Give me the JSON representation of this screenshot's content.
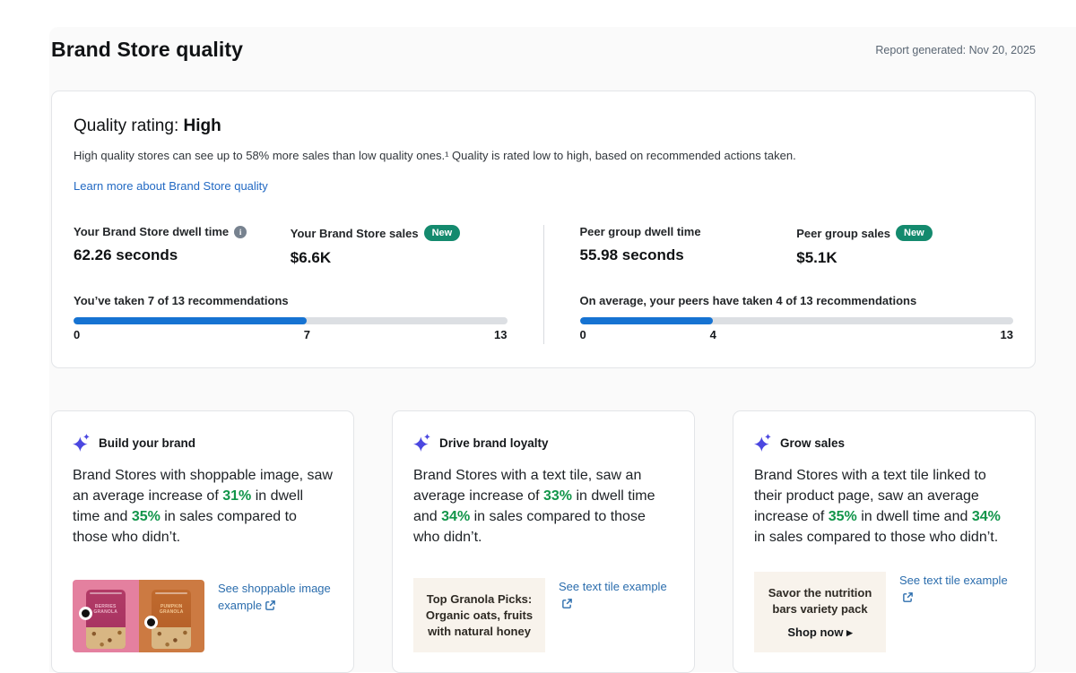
{
  "page": {
    "title": "Brand Store quality",
    "report_generated": "Report generated: Nov 20, 2025"
  },
  "quality_card": {
    "rating_label": "Quality rating:",
    "rating_value": "High",
    "description": "High quality stores can see up to 58% more sales than low quality ones.¹ Quality is rated low to high, based on recommended actions taken.",
    "learn_more": "Learn more about Brand Store quality",
    "metrics": [
      {
        "label": "Your Brand Store dwell time",
        "value": "62.26 seconds"
      },
      {
        "label": "Your Brand Store sales",
        "value": "$6.6K",
        "badge": "New"
      },
      {
        "label": "Peer group dwell time",
        "value": "55.98 seconds"
      },
      {
        "label": "Peer group sales",
        "value": "$5.1K",
        "badge": "New"
      }
    ],
    "progress": [
      {
        "label": "You’ve taken 7 of 13 recommendations",
        "min": "0",
        "current": "7",
        "max": "13",
        "fraction": 0.5385
      },
      {
        "label": "On average, your peers have taken 4 of 13 recommendations",
        "min": "0",
        "current": "4",
        "max": "13",
        "fraction": 0.3077
      }
    ]
  },
  "cards": [
    {
      "title": "Build your brand",
      "body": {
        "s1": "Brand Stores with shoppable image, saw an average increase of ",
        "p1": "31%",
        "s2": " in dwell time and ",
        "p2": "35%",
        "s3": " in sales compared to those who didn’t."
      },
      "link": "See shoppable image example",
      "image": {
        "left_label": "BERRIES GRANOLA",
        "right_label": "PUMPKIN GRANOLA"
      }
    },
    {
      "title": "Drive brand loyalty",
      "body": {
        "s1": "Brand Stores with a text tile, saw an average increase of ",
        "p1": "33%",
        "s2": " in dwell time and ",
        "p2": "34%",
        "s3": " in sales compared to those who didn’t."
      },
      "link": "See text tile example",
      "tile": {
        "text": "Top Granola Picks: Organic oats, fruits with natural honey"
      }
    },
    {
      "title": "Grow sales",
      "body": {
        "s1": "Brand Stores with a text tile linked to their product page, saw an average increase of ",
        "p1": "35%",
        "s2": " in dwell time and ",
        "p2": "34%",
        "s3": " in sales compared to those who didn’t."
      },
      "link": "See text tile example",
      "tile": {
        "text": "Savor the nutrition bars variety pack",
        "cta": "Shop now ▸"
      }
    }
  ],
  "colors": {
    "link_blue": "#2269c3",
    "success_green": "#12954a",
    "badge_teal": "#148a6e",
    "progress_blue": "#1673d2",
    "sparkle_indigo": "#4b47e0"
  }
}
